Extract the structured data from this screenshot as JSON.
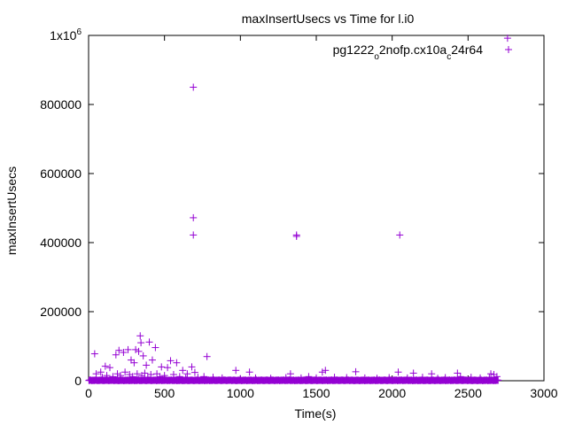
{
  "chart_data": {
    "type": "scatter",
    "title": "maxInsertUsecs vs Time for l.i0",
    "xlabel": "Time(s)",
    "ylabel": "maxInsertUsecs",
    "xlim": [
      0,
      3000
    ],
    "ylim": [
      0,
      1000000
    ],
    "x_ticks": [
      {
        "value": 0,
        "label": "0"
      },
      {
        "value": 500,
        "label": "500"
      },
      {
        "value": 1000,
        "label": "1000"
      },
      {
        "value": 1500,
        "label": "1500"
      },
      {
        "value": 2000,
        "label": "2000"
      },
      {
        "value": 2500,
        "label": "2500"
      },
      {
        "value": 3000,
        "label": "3000"
      }
    ],
    "y_ticks": [
      {
        "value": 0,
        "label": "0"
      },
      {
        "value": 200000,
        "label": "200000"
      },
      {
        "value": 400000,
        "label": "400000"
      },
      {
        "value": 600000,
        "label": "600000"
      },
      {
        "value": 800000,
        "label": "800000"
      }
    ],
    "y_top_label": {
      "mantissa": "1x10",
      "exponent": "6"
    },
    "grid": false,
    "legend": {
      "position": "top-right",
      "entries": [
        {
          "name_parts": [
            {
              "text": "pg1222",
              "sub": false
            },
            {
              "text": "o",
              "sub": true
            },
            {
              "text": "2nofp.cx10a",
              "sub": false
            },
            {
              "text": "c",
              "sub": true
            },
            {
              "text": "24r64",
              "sub": false
            }
          ],
          "marker": "plus",
          "color": "#9400d3"
        }
      ]
    },
    "series": [
      {
        "marker": "plus",
        "color": "#9400d3",
        "points": [
          [
            690,
            850000
          ],
          [
            690,
            472000
          ],
          [
            690,
            422000
          ],
          [
            1370,
            422000
          ],
          [
            1370,
            418000
          ],
          [
            2050,
            422000
          ],
          [
            40,
            78000
          ],
          [
            110,
            42000
          ],
          [
            140,
            38000
          ],
          [
            180,
            75000
          ],
          [
            200,
            88000
          ],
          [
            230,
            82000
          ],
          [
            260,
            90000
          ],
          [
            280,
            60000
          ],
          [
            300,
            52000
          ],
          [
            310,
            90000
          ],
          [
            330,
            85000
          ],
          [
            340,
            130000
          ],
          [
            345,
            110000
          ],
          [
            360,
            72000
          ],
          [
            380,
            45000
          ],
          [
            400,
            112000
          ],
          [
            420,
            60000
          ],
          [
            440,
            96000
          ],
          [
            480,
            40000
          ],
          [
            520,
            38000
          ],
          [
            540,
            58000
          ],
          [
            580,
            52000
          ],
          [
            620,
            30000
          ],
          [
            650,
            20000
          ],
          [
            680,
            40000
          ],
          [
            700,
            24000
          ],
          [
            780,
            70000
          ],
          [
            820,
            10000
          ],
          [
            970,
            30000
          ],
          [
            1060,
            25000
          ],
          [
            1330,
            20000
          ],
          [
            1540,
            25000
          ],
          [
            1560,
            30000
          ],
          [
            1760,
            26000
          ],
          [
            2040,
            25000
          ],
          [
            2140,
            22000
          ],
          [
            2260,
            20000
          ],
          [
            2430,
            22000
          ],
          [
            2650,
            20000
          ],
          [
            2670,
            18000
          ],
          [
            50,
            20000
          ],
          [
            80,
            25000
          ],
          [
            90,
            10000
          ],
          [
            120,
            15000
          ],
          [
            160,
            12000
          ],
          [
            190,
            20000
          ],
          [
            210,
            15000
          ],
          [
            240,
            25000
          ],
          [
            270,
            18000
          ],
          [
            290,
            12000
          ],
          [
            320,
            20000
          ],
          [
            350,
            15000
          ],
          [
            370,
            22000
          ],
          [
            390,
            10000
          ],
          [
            410,
            18000
          ],
          [
            450,
            20000
          ],
          [
            470,
            12000
          ],
          [
            500,
            15000
          ],
          [
            560,
            18000
          ],
          [
            600,
            12000
          ],
          [
            640,
            8000
          ],
          [
            720,
            10000
          ],
          [
            760,
            12000
          ],
          [
            880,
            8000
          ],
          [
            1000,
            6000
          ],
          [
            1100,
            8000
          ],
          [
            1200,
            7000
          ],
          [
            1300,
            9000
          ],
          [
            1400,
            8000
          ],
          [
            1450,
            12000
          ],
          [
            1500,
            8000
          ],
          [
            1620,
            10000
          ],
          [
            1700,
            9000
          ],
          [
            1820,
            8000
          ],
          [
            1900,
            7000
          ],
          [
            1980,
            9000
          ],
          [
            2100,
            8000
          ],
          [
            2200,
            10000
          ],
          [
            2300,
            7000
          ],
          [
            2350,
            9000
          ],
          [
            2450,
            12000
          ],
          [
            2520,
            10000
          ],
          [
            2580,
            8000
          ],
          [
            2640,
            9000
          ],
          [
            2690,
            12000
          ],
          [
            2760,
            992000
          ]
        ]
      }
    ]
  }
}
